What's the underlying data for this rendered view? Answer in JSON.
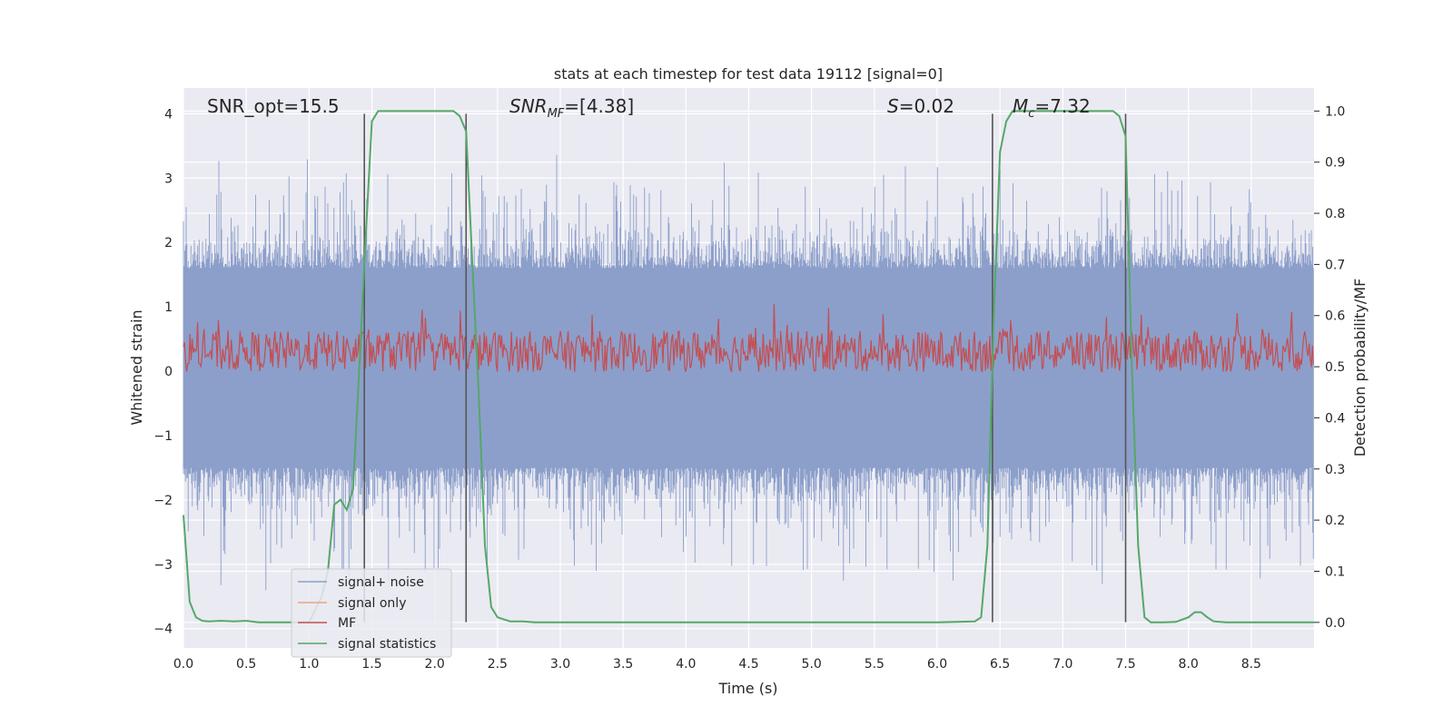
{
  "chart_data": {
    "type": "line",
    "title": "stats at each timestep for test data 19112 [signal=0]",
    "xlabel": "Time (s)",
    "ylabel": "Whitened strain",
    "ylabel_right": "Detection probability/MF",
    "xlim": [
      0,
      9.0
    ],
    "ylim": [
      -4.3,
      4.4
    ],
    "ylim_right": [
      -0.05,
      1.045
    ],
    "x_ticks": [
      "0.0",
      "0.5",
      "1.0",
      "1.5",
      "2.0",
      "2.5",
      "3.0",
      "3.5",
      "4.0",
      "4.5",
      "5.0",
      "5.5",
      "6.0",
      "6.5",
      "7.0",
      "7.5",
      "8.0",
      "8.5"
    ],
    "y_ticks": [
      "−4",
      "−3",
      "−2",
      "−1",
      "0",
      "1",
      "2",
      "3",
      "4"
    ],
    "y_ticks_right": [
      "0.0",
      "0.1",
      "0.2",
      "0.3",
      "0.4",
      "0.5",
      "0.6",
      "0.7",
      "0.8",
      "0.9",
      "1.0"
    ],
    "grid": true,
    "annotations": [
      {
        "text": "SNR_opt=15.5",
        "x": 0.2,
        "y": 4.1
      },
      {
        "text_main": "SNR",
        "text_sub": "MF",
        "text_rest": "=[4.38]",
        "x": 2.6,
        "y": 4.1
      },
      {
        "text_main": "S",
        "text_rest": "=0.02",
        "x": 5.6,
        "y": 4.1
      },
      {
        "text_main": "M",
        "text_sub": "c",
        "text_rest": "=7.32",
        "x": 6.6,
        "y": 4.1
      }
    ],
    "vertical_lines": [
      1.44,
      2.25,
      6.44,
      7.5
    ],
    "vertical_line_range": [
      -3.9,
      4.0
    ],
    "series": [
      {
        "name": "signal+ noise",
        "color": "#8c9fca",
        "kind": "noise",
        "env_low": [
          -1.5,
          -3.5
        ],
        "env_high": [
          1.6,
          3.4
        ]
      },
      {
        "name": "signal only",
        "color": "#e8a583",
        "kind": "empty"
      },
      {
        "name": "MF",
        "color": "#c44e52",
        "kind": "mf",
        "center_right": 0.53,
        "amp_right": 0.04
      },
      {
        "name": "signal statistics",
        "color": "#55a868",
        "kind": "stat",
        "x": [
          0.0,
          0.05,
          0.1,
          0.15,
          0.2,
          0.3,
          0.4,
          0.5,
          0.6,
          0.8,
          1.0,
          1.1,
          1.15,
          1.2,
          1.25,
          1.3,
          1.35,
          1.4,
          1.45,
          1.5,
          1.55,
          1.6,
          1.7,
          1.8,
          1.9,
          2.0,
          2.1,
          2.15,
          2.2,
          2.25,
          2.3,
          2.35,
          2.4,
          2.45,
          2.5,
          2.6,
          2.7,
          2.8,
          3.0,
          4.0,
          5.0,
          6.0,
          6.3,
          6.35,
          6.4,
          6.45,
          6.5,
          6.55,
          6.6,
          6.7,
          6.8,
          7.0,
          7.2,
          7.4,
          7.45,
          7.5,
          7.55,
          7.6,
          7.65,
          7.7,
          7.8,
          7.9,
          8.0,
          8.05,
          8.1,
          8.15,
          8.2,
          8.3,
          8.5,
          9.0
        ],
        "y": [
          0.21,
          0.04,
          0.01,
          0.003,
          0.002,
          0.003,
          0.002,
          0.003,
          0.0,
          0.0,
          0.0,
          0.05,
          0.1,
          0.23,
          0.24,
          0.22,
          0.26,
          0.5,
          0.75,
          0.98,
          1.0,
          1.0,
          1.0,
          1.0,
          1.0,
          1.0,
          1.0,
          1.0,
          0.99,
          0.96,
          0.7,
          0.45,
          0.15,
          0.03,
          0.01,
          0.002,
          0.002,
          0.0,
          0.0,
          0.0,
          0.0,
          0.0,
          0.002,
          0.01,
          0.15,
          0.6,
          0.92,
          0.98,
          1.0,
          1.0,
          1.0,
          1.0,
          1.0,
          1.0,
          0.99,
          0.95,
          0.5,
          0.15,
          0.01,
          0.0,
          0.0,
          0.001,
          0.01,
          0.02,
          0.02,
          0.01,
          0.002,
          0.0,
          0.0,
          0.0
        ]
      }
    ]
  }
}
